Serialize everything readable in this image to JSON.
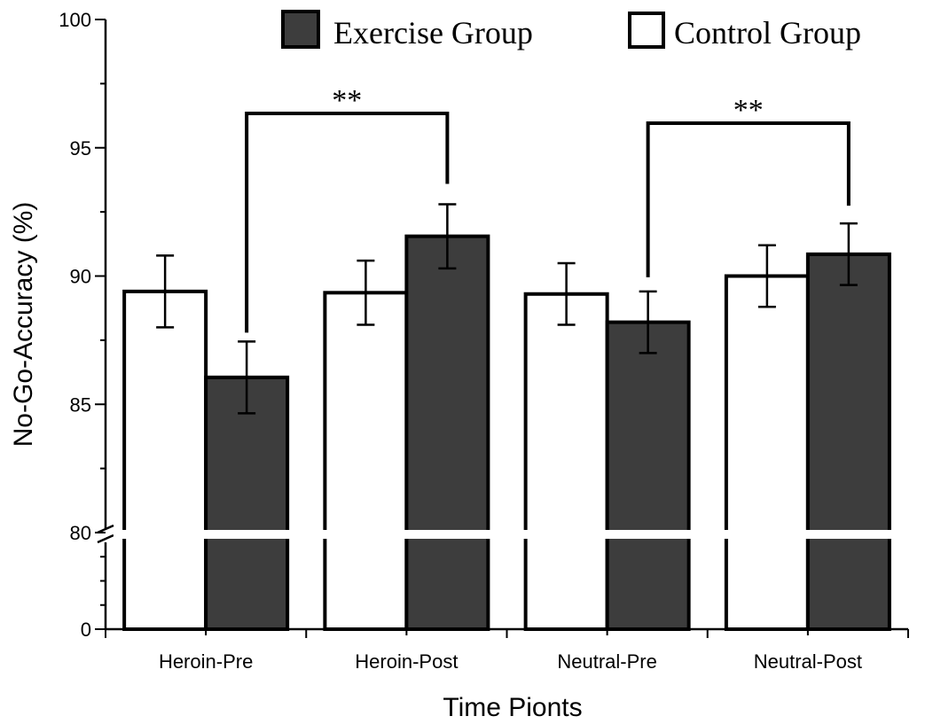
{
  "chart_data": {
    "type": "bar",
    "title": "",
    "xlabel": "Time Pionts",
    "ylabel": "No-Go-Accuracy (%)",
    "categories": [
      "Heroin-Pre",
      "Heroin-Post",
      "Neutral-Pre",
      "Neutral-Post"
    ],
    "series": [
      {
        "name": "Control Group",
        "color": "#ffffff",
        "values": [
          89.4,
          89.35,
          89.3,
          90.0
        ],
        "errors": [
          1.4,
          1.25,
          1.2,
          1.2
        ]
      },
      {
        "name": "Exercise Group",
        "color": "#3d3d3d",
        "values": [
          86.05,
          91.55,
          88.2,
          90.85
        ],
        "errors": [
          1.4,
          1.25,
          1.2,
          1.2
        ]
      }
    ],
    "y_axis": {
      "break": true,
      "lower_range": [
        0,
        80
      ],
      "upper_range": [
        80,
        100
      ],
      "tick_labels": [
        "0",
        "80",
        "85",
        "90",
        "95",
        "100"
      ]
    },
    "significance": [
      {
        "label": "**",
        "from": {
          "series": "Exercise Group",
          "category": "Heroin-Pre"
        },
        "to": {
          "series": "Exercise Group",
          "category": "Heroin-Post"
        }
      },
      {
        "label": "**",
        "from": {
          "series": "Exercise Group",
          "category": "Neutral-Pre"
        },
        "to": {
          "series": "Exercise Group",
          "category": "Neutral-Post"
        }
      }
    ],
    "legend": {
      "position": "top-right",
      "entries": [
        "Exercise Group",
        "Control Group"
      ]
    }
  }
}
